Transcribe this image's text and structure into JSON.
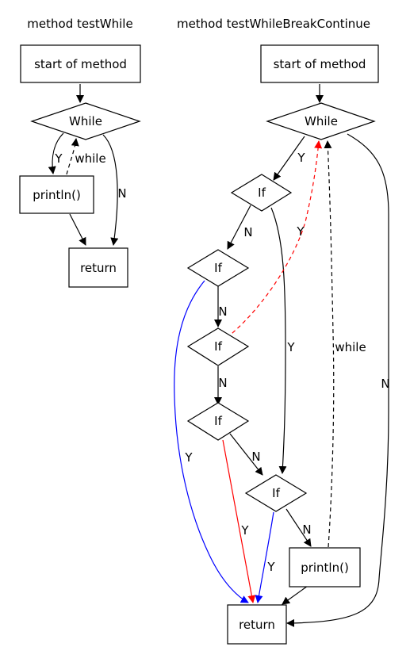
{
  "colors": {
    "default": "#000000",
    "red": "#ff0000",
    "blue": "#0000ff",
    "background": "#ffffff"
  },
  "diagrams": [
    {
      "title": "method testWhile"
    },
    {
      "title": "method testWhileBreakContinue"
    }
  ],
  "nodes": {
    "w_start": {
      "label": "start of method",
      "shape": "box"
    },
    "w_while": {
      "label": "While",
      "shape": "diamond"
    },
    "w_println": {
      "label": "println()",
      "shape": "box"
    },
    "w_return": {
      "label": "return",
      "shape": "box"
    },
    "b_start": {
      "label": "start of method",
      "shape": "box"
    },
    "b_while": {
      "label": "While",
      "shape": "diamond"
    },
    "b_if1": {
      "label": "If",
      "shape": "diamond"
    },
    "b_if2": {
      "label": "If",
      "shape": "diamond"
    },
    "b_if3": {
      "label": "If",
      "shape": "diamond"
    },
    "b_if4": {
      "label": "If",
      "shape": "diamond"
    },
    "b_if5": {
      "label": "If",
      "shape": "diamond"
    },
    "b_println": {
      "label": "println()",
      "shape": "box"
    },
    "b_return": {
      "label": "return",
      "shape": "box"
    }
  },
  "edges": [
    {
      "from": "w_start",
      "to": "w_while",
      "label": "",
      "color": "default",
      "style": "solid"
    },
    {
      "from": "w_while",
      "to": "w_println",
      "label": "Y",
      "color": "default",
      "style": "solid"
    },
    {
      "from": "w_println",
      "to": "w_while",
      "label": "while",
      "color": "default",
      "style": "dashed"
    },
    {
      "from": "w_while",
      "to": "w_return",
      "label": "N",
      "color": "default",
      "style": "solid"
    },
    {
      "from": "w_println",
      "to": "w_return",
      "label": "",
      "color": "default",
      "style": "solid"
    },
    {
      "from": "b_start",
      "to": "b_while",
      "label": "",
      "color": "default",
      "style": "solid"
    },
    {
      "from": "b_while",
      "to": "b_if1",
      "label": "Y",
      "color": "default",
      "style": "solid"
    },
    {
      "from": "b_while",
      "to": "b_return",
      "label": "N",
      "color": "default",
      "style": "solid"
    },
    {
      "from": "b_if1",
      "to": "b_if2",
      "label": "N",
      "color": "default",
      "style": "solid"
    },
    {
      "from": "b_if1",
      "to": "b_if5",
      "label": "Y",
      "color": "default",
      "style": "solid"
    },
    {
      "from": "b_if2",
      "to": "b_if3",
      "label": "N",
      "color": "default",
      "style": "solid"
    },
    {
      "from": "b_if2",
      "to": "b_return",
      "label": "Y",
      "color": "blue",
      "style": "solid"
    },
    {
      "from": "b_if3",
      "to": "b_while",
      "label": "Y",
      "color": "red",
      "style": "dashed"
    },
    {
      "from": "b_if3",
      "to": "b_if4",
      "label": "N",
      "color": "default",
      "style": "solid"
    },
    {
      "from": "b_if4",
      "to": "b_if5",
      "label": "N",
      "color": "default",
      "style": "solid"
    },
    {
      "from": "b_if4",
      "to": "b_return",
      "label": "Y",
      "color": "red",
      "style": "solid"
    },
    {
      "from": "b_if5",
      "to": "b_println",
      "label": "N",
      "color": "default",
      "style": "solid"
    },
    {
      "from": "b_if5",
      "to": "b_return",
      "label": "Y",
      "color": "blue",
      "style": "solid"
    },
    {
      "from": "b_println",
      "to": "b_while",
      "label": "while",
      "color": "default",
      "style": "dashed"
    },
    {
      "from": "b_println",
      "to": "b_return",
      "label": "",
      "color": "default",
      "style": "solid"
    }
  ]
}
